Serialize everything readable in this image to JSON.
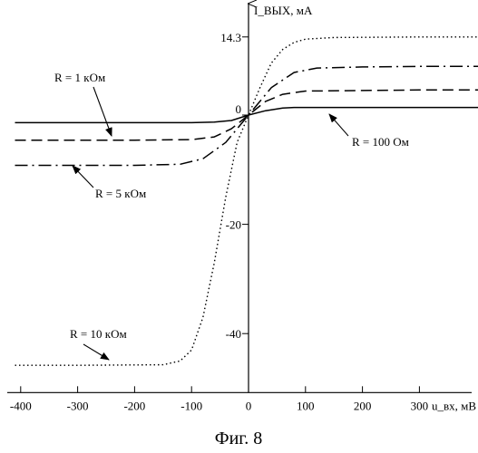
{
  "chart_data": {
    "type": "line",
    "xlabel": "u_вх, мВ",
    "ylabel": "I_ВЫХ, мА",
    "xlim": [
      -400,
      400
    ],
    "ylim": [
      -50,
      20
    ],
    "x_ticks": [
      -400,
      -300,
      -200,
      -100,
      0,
      100,
      200,
      300
    ],
    "y_ticks": [
      14.3,
      0,
      -20,
      -40
    ],
    "y_tick_labels": [
      "14.3",
      "0",
      "-20",
      "-40"
    ],
    "x_tick_labels": [
      "-400",
      "-300",
      "-200",
      "-100",
      "0",
      "100",
      "200",
      "300"
    ],
    "grid": false,
    "series": [
      {
        "name": "R = 100 Ом",
        "style": "solid",
        "x": [
          -410,
          -300,
          -200,
          -100,
          -60,
          -30,
          0,
          30,
          60,
          80,
          100,
          200,
          300,
          410
        ],
        "y": [
          -1.4,
          -1.4,
          -1.4,
          -1.4,
          -1.3,
          -1.0,
          0,
          0.8,
          1.3,
          1.4,
          1.4,
          1.4,
          1.4,
          1.4
        ]
      },
      {
        "name": "R = 1 кОм",
        "style": "dashed",
        "x": [
          -410,
          -300,
          -200,
          -100,
          -60,
          -30,
          0,
          30,
          60,
          100,
          200,
          300,
          410
        ],
        "y": [
          -4.6,
          -4.6,
          -4.6,
          -4.5,
          -4.0,
          -2.5,
          0,
          2.5,
          3.8,
          4.4,
          4.5,
          4.6,
          4.6
        ]
      },
      {
        "name": "R = 5 кОм",
        "style": "dashdot",
        "x": [
          -410,
          -300,
          -200,
          -120,
          -80,
          -40,
          0,
          40,
          80,
          120,
          200,
          300,
          410
        ],
        "y": [
          -9.2,
          -9.2,
          -9.2,
          -9.0,
          -8.0,
          -5.0,
          0,
          5.0,
          7.8,
          8.6,
          8.8,
          8.9,
          8.9
        ]
      },
      {
        "name": "R = 10 кОм",
        "style": "dotted",
        "x": [
          -410,
          -300,
          -150,
          -120,
          -100,
          -80,
          -60,
          -40,
          -20,
          0,
          20,
          40,
          60,
          80,
          100,
          150,
          300,
          410
        ],
        "y": [
          -45.8,
          -45.8,
          -45.7,
          -45.0,
          -43.0,
          -37.0,
          -27.0,
          -15.0,
          -5.0,
          0,
          5.0,
          9.5,
          12.0,
          13.3,
          13.9,
          14.2,
          14.3,
          14.3
        ]
      }
    ],
    "annotations": [
      {
        "text": "R = 1 кОм"
      },
      {
        "text": "R = 100 Ом"
      },
      {
        "text": "R = 5 кОм"
      },
      {
        "text": "R = 10 кОм"
      }
    ],
    "caption": "Фиг. 8"
  }
}
